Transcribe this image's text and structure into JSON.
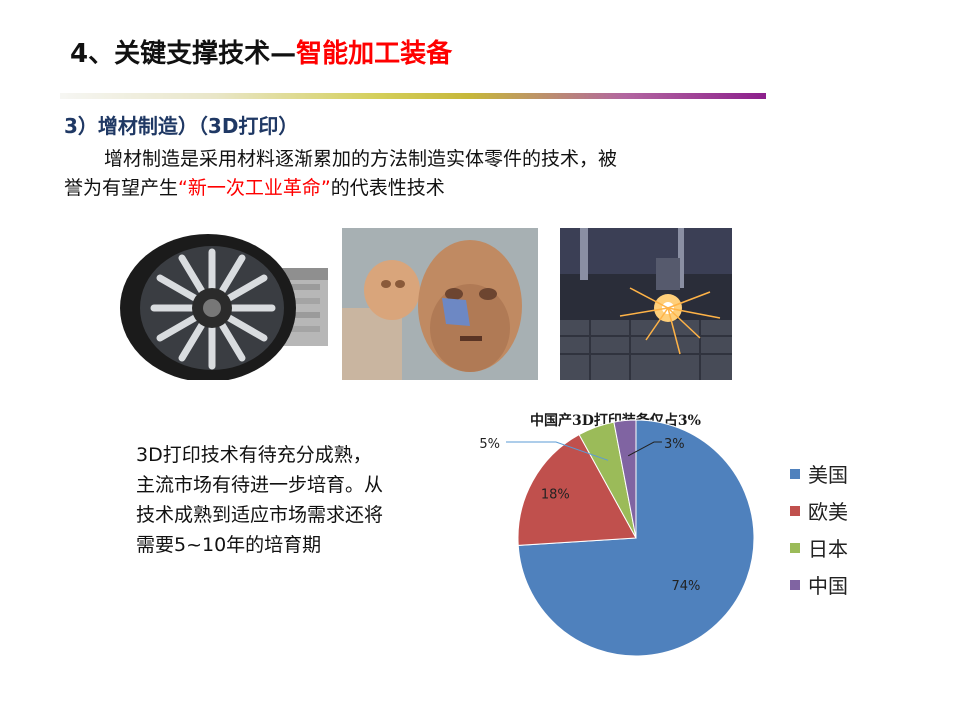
{
  "slide": {
    "title_prefix": "4、关键支撑技术—",
    "title_accent": "智能加工装备"
  },
  "section": {
    "heading": "3）增材制造）（3D打印）",
    "intro_line1": "增材制造是采用材料逐渐累加的方法制造实体零件的技术，被",
    "intro_line2_prefix": "誉为有望产生",
    "intro_line2_red": "“新一次工业革命”",
    "intro_line2_suffix": "的代表性技术"
  },
  "photos": [
    {
      "icon": "jet-engine-fan-image"
    },
    {
      "icon": "3d-printed-faces-image"
    },
    {
      "icon": "laser-sintering-sparks-image"
    }
  ],
  "side_text": "3D打印技术有待充分成熟，主流市场有待进一步培育。从技术成熟到适应市场需求还将需要5~10年的培育期",
  "chart_data": {
    "type": "pie",
    "title": "中国产3D打印装备仅占3%",
    "series": [
      {
        "name": "美国",
        "value": 74,
        "label": "74%",
        "color": "#4f81bd"
      },
      {
        "name": "欧美",
        "value": 18,
        "label": "18%",
        "color": "#c0504d"
      },
      {
        "name": "日本",
        "value": 5,
        "label": "5%",
        "color": "#9bbb59"
      },
      {
        "name": "中国",
        "value": 3,
        "label": "3%",
        "color": "#8064a2"
      }
    ],
    "legend_position": "right"
  }
}
